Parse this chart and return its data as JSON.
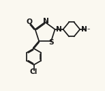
{
  "bg_color": "#faf8f0",
  "line_color": "#1a1a1a",
  "lw": 1.25,
  "fs": 7.2,
  "fig_w": 1.54,
  "fig_h": 1.33,
  "dpi": 100,
  "xlim": [
    -1.0,
    9.5
  ],
  "ylim": [
    2.2,
    9.2
  ]
}
